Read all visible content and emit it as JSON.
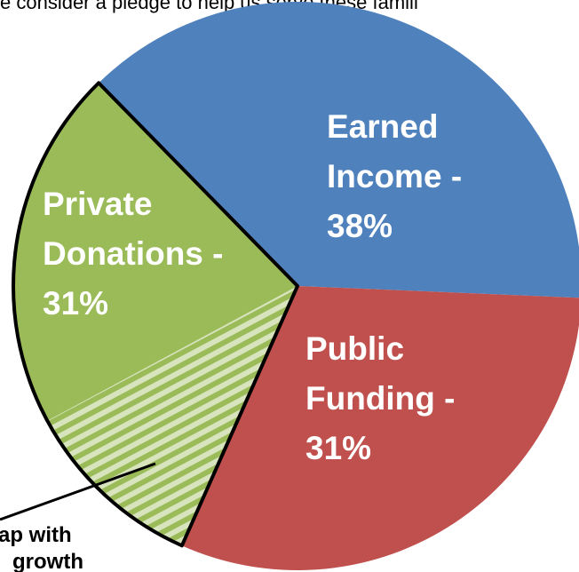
{
  "chart_data": {
    "type": "pie",
    "subtitle": "e consider a pledge to help us serve these famili",
    "categories": [
      "Earned Income -",
      "Public Funding -",
      "Private Donations -"
    ],
    "values": [
      38,
      31,
      31
    ],
    "value_labels": [
      "38%",
      "31%",
      "31%"
    ],
    "colors": [
      "#4f81bd",
      "#c0504d",
      "#9bbb59"
    ],
    "annotation": [
      "ap with",
      "growth"
    ]
  }
}
